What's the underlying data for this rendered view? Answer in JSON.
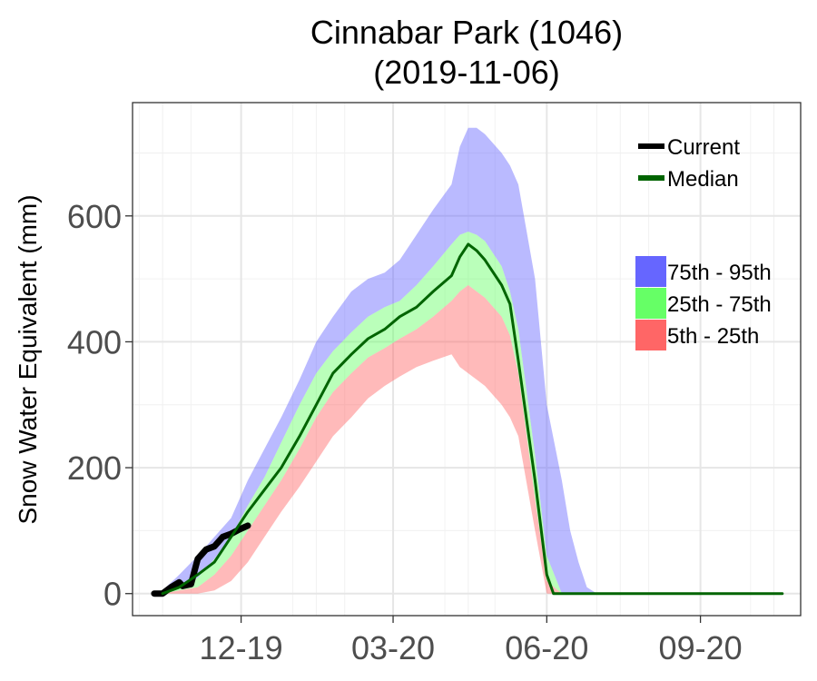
{
  "chart_data": {
    "type": "area",
    "title": "Cinnabar Park (1046)",
    "subtitle": "(2019-11-06)",
    "ylabel": "Snow Water Equivalent (mm)",
    "xlabel": "",
    "ylim": [
      -35,
      780
    ],
    "xlim": [
      "2019-09-27",
      "2020-10-31"
    ],
    "grid": true,
    "y_ticks": [
      0,
      200,
      400,
      600
    ],
    "x_ticks": [
      {
        "label": "12-19",
        "date": "2019-12-01"
      },
      {
        "label": "03-20",
        "date": "2020-03-01"
      },
      {
        "label": "06-20",
        "date": "2020-06-01"
      },
      {
        "label": "09-20",
        "date": "2020-09-01"
      }
    ],
    "legend_position": "top-right",
    "bands": [
      {
        "name": "75th - 95th",
        "color": "#6666ff",
        "x": [
          "2019-10-15",
          "2019-10-25",
          "2019-11-05",
          "2019-11-15",
          "2019-11-25",
          "2019-12-05",
          "2019-12-15",
          "2019-12-25",
          "2020-01-05",
          "2020-01-15",
          "2020-01-25",
          "2020-02-05",
          "2020-02-15",
          "2020-02-25",
          "2020-03-05",
          "2020-03-15",
          "2020-03-25",
          "2020-04-05",
          "2020-04-10",
          "2020-04-15",
          "2020-04-20",
          "2020-04-25",
          "2020-05-05",
          "2020-05-10",
          "2020-05-15",
          "2020-05-25",
          "2020-06-01",
          "2020-06-10",
          "2020-06-15",
          "2020-06-20",
          "2020-06-25",
          "2020-07-01"
        ],
        "upper": [
          5,
          30,
          60,
          90,
          120,
          180,
          230,
          280,
          340,
          400,
          440,
          480,
          500,
          510,
          530,
          570,
          610,
          650,
          710,
          740,
          740,
          730,
          700,
          680,
          650,
          500,
          300,
          180,
          100,
          50,
          10,
          0
        ],
        "lower": [
          0,
          10,
          25,
          55,
          90,
          140,
          185,
          240,
          300,
          350,
          385,
          415,
          440,
          455,
          465,
          490,
          520,
          555,
          570,
          575,
          570,
          560,
          520,
          480,
          420,
          220,
          60,
          0,
          0,
          0,
          0,
          0
        ]
      },
      {
        "name": "25th - 75th",
        "color": "#66ff66",
        "x": [
          "2019-10-15",
          "2019-10-25",
          "2019-11-05",
          "2019-11-15",
          "2019-11-25",
          "2019-12-05",
          "2019-12-15",
          "2019-12-25",
          "2020-01-05",
          "2020-01-15",
          "2020-01-25",
          "2020-02-05",
          "2020-02-15",
          "2020-02-25",
          "2020-03-05",
          "2020-03-15",
          "2020-03-25",
          "2020-04-05",
          "2020-04-10",
          "2020-04-15",
          "2020-04-20",
          "2020-04-25",
          "2020-05-05",
          "2020-05-10",
          "2020-05-15",
          "2020-05-25",
          "2020-06-01",
          "2020-06-10"
        ],
        "upper": [
          0,
          10,
          25,
          55,
          90,
          140,
          185,
          240,
          300,
          350,
          385,
          415,
          440,
          455,
          465,
          490,
          520,
          555,
          570,
          575,
          570,
          560,
          520,
          480,
          420,
          220,
          60,
          0
        ],
        "lower": [
          0,
          5,
          10,
          30,
          60,
          100,
          140,
          180,
          230,
          280,
          320,
          350,
          375,
          390,
          405,
          420,
          440,
          465,
          480,
          490,
          480,
          470,
          440,
          410,
          350,
          150,
          20,
          0
        ]
      },
      {
        "name": "5th - 25th",
        "color": "#ff6666",
        "x": [
          "2019-10-15",
          "2019-10-25",
          "2019-11-05",
          "2019-11-15",
          "2019-11-25",
          "2019-12-05",
          "2019-12-15",
          "2019-12-25",
          "2020-01-05",
          "2020-01-15",
          "2020-01-25",
          "2020-02-05",
          "2020-02-15",
          "2020-02-25",
          "2020-03-05",
          "2020-03-15",
          "2020-03-25",
          "2020-04-05",
          "2020-04-10",
          "2020-04-15",
          "2020-04-20",
          "2020-04-25",
          "2020-05-05",
          "2020-05-10",
          "2020-05-15",
          "2020-05-25",
          "2020-06-01",
          "2020-06-10"
        ],
        "upper": [
          0,
          5,
          10,
          30,
          60,
          100,
          140,
          180,
          230,
          280,
          320,
          350,
          375,
          390,
          405,
          420,
          440,
          465,
          480,
          490,
          480,
          470,
          440,
          410,
          350,
          150,
          20,
          0
        ],
        "lower": [
          0,
          0,
          0,
          5,
          20,
          50,
          90,
          130,
          170,
          210,
          250,
          280,
          310,
          330,
          345,
          360,
          370,
          380,
          360,
          350,
          340,
          330,
          300,
          280,
          250,
          100,
          0,
          0
        ]
      }
    ],
    "series": [
      {
        "name": "Current",
        "color": "#000000",
        "x": [
          "2019-10-10",
          "2019-10-15",
          "2019-10-20",
          "2019-10-25",
          "2019-10-27",
          "2019-11-01",
          "2019-11-05",
          "2019-11-10",
          "2019-11-15",
          "2019-11-20",
          "2019-11-25",
          "2019-11-30",
          "2019-12-05"
        ],
        "values": [
          0,
          0,
          10,
          18,
          12,
          15,
          55,
          70,
          75,
          90,
          95,
          102,
          108
        ]
      },
      {
        "name": "Median",
        "color": "#006400",
        "x": [
          "2019-10-15",
          "2019-10-25",
          "2019-11-05",
          "2019-11-15",
          "2019-11-25",
          "2019-12-05",
          "2019-12-15",
          "2019-12-25",
          "2020-01-05",
          "2020-01-15",
          "2020-01-25",
          "2020-02-05",
          "2020-02-15",
          "2020-02-25",
          "2020-03-05",
          "2020-03-15",
          "2020-03-25",
          "2020-04-05",
          "2020-04-10",
          "2020-04-15",
          "2020-04-20",
          "2020-04-25",
          "2020-05-05",
          "2020-05-10",
          "2020-05-15",
          "2020-05-25",
          "2020-06-01",
          "2020-06-05",
          "2020-10-20"
        ],
        "values": [
          0,
          10,
          30,
          50,
          90,
          130,
          165,
          200,
          250,
          300,
          350,
          380,
          405,
          420,
          440,
          455,
          480,
          505,
          535,
          555,
          545,
          530,
          490,
          460,
          370,
          180,
          30,
          0,
          0
        ]
      }
    ]
  }
}
